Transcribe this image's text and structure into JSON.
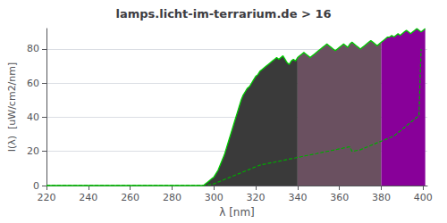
{
  "chart_data": {
    "type": "line",
    "title": "lamps.licht-im-terrarium.de > 16",
    "xlabel": "λ [nm]",
    "ylabel": "I(λ)  [uW/cm2/nm]",
    "xlim": [
      220,
      402
    ],
    "ylim": [
      0,
      92
    ],
    "xticks": [
      220,
      240,
      260,
      280,
      300,
      320,
      340,
      360,
      380,
      400
    ],
    "yticks": [
      0,
      20,
      40,
      60,
      80
    ],
    "grid": true,
    "series": [
      {
        "type": "area",
        "color": "#3a3a3a",
        "x": [
          295,
          296,
          297,
          298,
          299,
          300,
          301,
          302,
          303,
          304,
          305,
          306,
          307,
          308,
          309,
          310,
          311,
          312,
          313,
          314,
          315,
          316,
          317,
          318,
          319,
          320,
          321,
          322,
          323,
          324,
          325,
          326,
          327,
          328,
          329,
          330,
          331,
          332,
          333,
          334,
          335,
          336,
          337,
          338,
          339,
          340
        ],
        "values": [
          0,
          1,
          2,
          3,
          4,
          5,
          7,
          9,
          12,
          15,
          18,
          22,
          26,
          30,
          34,
          38,
          42,
          46,
          50,
          53,
          55,
          57,
          58,
          60,
          62,
          64,
          65,
          67,
          68,
          69,
          70,
          71,
          72,
          73,
          74,
          75,
          74,
          75,
          76,
          74,
          72,
          71,
          73,
          74,
          73,
          75
        ]
      },
      {
        "type": "area",
        "color": "#6a5060",
        "x": [
          340,
          341,
          342,
          343,
          344,
          345,
          346,
          347,
          348,
          349,
          350,
          351,
          352,
          353,
          354,
          355,
          356,
          357,
          358,
          359,
          360,
          361,
          362,
          363,
          364,
          365,
          366,
          367,
          368,
          369,
          370,
          371,
          372,
          373,
          374,
          375,
          376,
          377,
          378,
          379,
          380
        ],
        "values": [
          75,
          76,
          77,
          78,
          77,
          76,
          75,
          76,
          77,
          78,
          79,
          80,
          81,
          82,
          83,
          82,
          81,
          80,
          79,
          80,
          81,
          82,
          83,
          82,
          81,
          83,
          84,
          83,
          82,
          81,
          80,
          81,
          82,
          83,
          84,
          85,
          84,
          83,
          82,
          83,
          84
        ]
      },
      {
        "type": "area",
        "color": "#880099",
        "x": [
          380,
          381,
          382,
          383,
          384,
          385,
          386,
          387,
          388,
          389,
          390,
          391,
          392,
          393,
          394,
          395,
          396,
          397,
          398,
          399,
          400,
          401
        ],
        "values": [
          84,
          85,
          86,
          87,
          87,
          88,
          87,
          88,
          89,
          88,
          89,
          90,
          91,
          90,
          89,
          90,
          91,
          92,
          91,
          90,
          91,
          92
        ]
      },
      {
        "type": "line",
        "color": "#00cc00",
        "line_style": "solid",
        "x": [
          220,
          295,
          296,
          297,
          298,
          299,
          300,
          301,
          302,
          303,
          304,
          305,
          306,
          307,
          308,
          309,
          310,
          311,
          312,
          313,
          314,
          315,
          316,
          317,
          318,
          319,
          320,
          321,
          322,
          323,
          324,
          325,
          326,
          327,
          328,
          329,
          330,
          331,
          332,
          333,
          334,
          335,
          336,
          337,
          338,
          339,
          340,
          341,
          342,
          343,
          344,
          345,
          346,
          347,
          348,
          349,
          350,
          351,
          352,
          353,
          354,
          355,
          356,
          357,
          358,
          359,
          360,
          361,
          362,
          363,
          364,
          365,
          366,
          367,
          368,
          369,
          370,
          371,
          372,
          373,
          374,
          375,
          376,
          377,
          378,
          379,
          380,
          381,
          382,
          383,
          384,
          385,
          386,
          387,
          388,
          389,
          390,
          391,
          392,
          393,
          394,
          395,
          396,
          397,
          398,
          399,
          400,
          401
        ],
        "values": [
          0,
          0,
          1,
          2,
          3,
          4,
          5,
          7,
          9,
          12,
          15,
          18,
          22,
          26,
          30,
          34,
          38,
          42,
          46,
          50,
          53,
          55,
          57,
          58,
          60,
          62,
          64,
          65,
          67,
          68,
          69,
          70,
          71,
          72,
          73,
          74,
          75,
          74,
          75,
          76,
          74,
          72,
          71,
          73,
          74,
          73,
          75,
          76,
          77,
          78,
          77,
          76,
          75,
          76,
          77,
          78,
          79,
          80,
          81,
          82,
          83,
          82,
          81,
          80,
          79,
          80,
          81,
          82,
          83,
          82,
          81,
          83,
          84,
          83,
          82,
          81,
          80,
          81,
          82,
          83,
          84,
          85,
          84,
          83,
          82,
          83,
          84,
          85,
          86,
          87,
          87,
          88,
          87,
          88,
          89,
          88,
          89,
          90,
          91,
          90,
          89,
          90,
          91,
          92,
          91,
          90,
          91,
          92
        ]
      },
      {
        "type": "line",
        "color": "#00aa00",
        "line_style": "dashed",
        "x": [
          220,
          295,
          296,
          297,
          298,
          299,
          300,
          301,
          302,
          303,
          304,
          305,
          306,
          307,
          308,
          309,
          310,
          311,
          312,
          313,
          314,
          315,
          316,
          317,
          318,
          319,
          320,
          321,
          322,
          323,
          324,
          325,
          326,
          327,
          328,
          329,
          330,
          331,
          332,
          333,
          334,
          335,
          336,
          337,
          338,
          339,
          340,
          341,
          342,
          343,
          344,
          345,
          346,
          347,
          348,
          349,
          350,
          351,
          352,
          353,
          354,
          355,
          356,
          357,
          358,
          359,
          360,
          361,
          362,
          363,
          364,
          365,
          366,
          367,
          368,
          369,
          370,
          371,
          372,
          373,
          374,
          375,
          376,
          377,
          378,
          379,
          380,
          381,
          382,
          383,
          384,
          385,
          386,
          387,
          388,
          389,
          390,
          391,
          392,
          393,
          394,
          395,
          396,
          397,
          398,
          399
        ],
        "values": [
          0,
          0,
          0.2,
          0.4,
          0.6,
          0.8,
          1,
          1.5,
          2,
          2.5,
          3,
          3.5,
          4,
          4.5,
          5,
          5.5,
          6,
          6.5,
          7,
          7.5,
          8,
          8.5,
          9,
          9.5,
          10,
          10.5,
          11,
          11.5,
          12,
          12.3,
          12.5,
          12.7,
          13,
          13.3,
          13.5,
          13.7,
          14,
          14.2,
          14.5,
          14.7,
          15,
          15.2,
          15.5,
          15.7,
          16,
          16.2,
          16.5,
          16.7,
          17,
          17.2,
          17.5,
          17.7,
          18,
          18.2,
          18.5,
          18.7,
          19,
          19.2,
          19.5,
          19.7,
          20,
          20.2,
          20.5,
          20.7,
          21,
          21.2,
          21.5,
          21.7,
          22,
          22.2,
          22.5,
          22.7,
          20,
          20.2,
          20.5,
          20.7,
          21,
          21.5,
          22,
          22.5,
          23,
          23.5,
          24,
          24.5,
          25,
          25.5,
          26,
          26.5,
          27,
          27.5,
          28,
          28.5,
          29,
          30,
          31,
          32,
          33,
          34,
          35,
          36,
          37,
          38,
          39,
          40,
          41,
          80
        ]
      }
    ]
  }
}
